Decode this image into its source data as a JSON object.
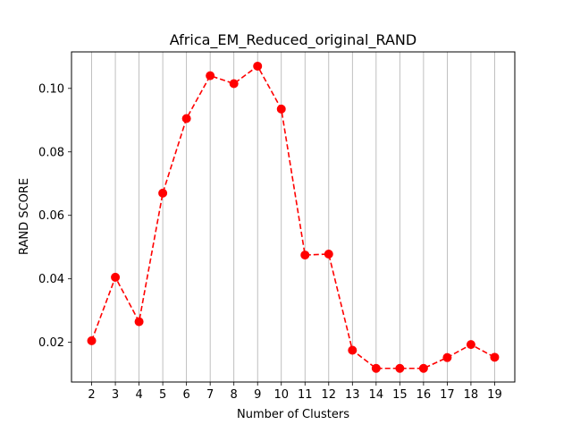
{
  "chart_data": {
    "type": "line",
    "title": "Africa_EM_Reduced_original_RAND",
    "xlabel": "Number of Clusters",
    "ylabel": "RAND SCORE",
    "x": [
      2,
      3,
      4,
      5,
      6,
      7,
      8,
      9,
      10,
      11,
      12,
      13,
      14,
      15,
      16,
      17,
      18,
      19
    ],
    "xticks": [
      "2",
      "3",
      "4",
      "5",
      "6",
      "7",
      "8",
      "9",
      "10",
      "11",
      "12",
      "13",
      "14",
      "15",
      "16",
      "17",
      "18",
      "19"
    ],
    "yticks": [
      0.02,
      0.04,
      0.06,
      0.08,
      0.1
    ],
    "ytick_labels": [
      "0.02",
      "0.04",
      "0.06",
      "0.08",
      "0.10"
    ],
    "xlim": [
      1.15,
      19.85
    ],
    "ylim": [
      0.0075,
      0.1115
    ],
    "grid": "vertical",
    "legend": "none",
    "series": [
      {
        "values": [
          0.0205,
          0.0405,
          0.0265,
          0.067,
          0.0905,
          0.104,
          0.1015,
          0.107,
          0.0935,
          0.0475,
          0.0478,
          0.0175,
          0.0118,
          0.0118,
          0.0118,
          0.0152,
          0.0193,
          0.0153
        ],
        "color": "#ff0000",
        "line_style": "dashed",
        "marker": "circle"
      }
    ]
  }
}
